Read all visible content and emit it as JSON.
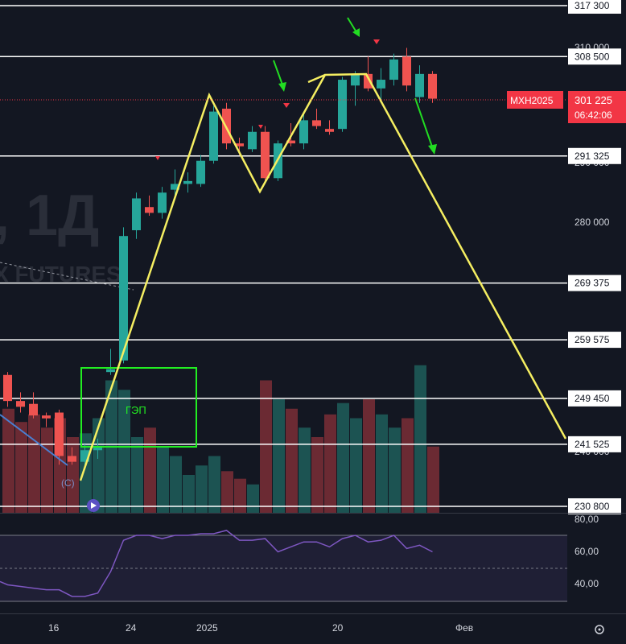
{
  "chart_data": {
    "type": "candlestick",
    "symbol_label": "MXH2025",
    "last_price": "301 225",
    "countdown": "06:42:06",
    "watermark": ", 1Д",
    "watermark_sub": "X FUTURES",
    "gap_label": "ГЭП",
    "wave_label": "(C)",
    "price_axis_ticks": [
      "310 000",
      "290 000",
      "280 000",
      "240 000"
    ],
    "time_axis_ticks": [
      "16",
      "24",
      "2025",
      "20",
      "Фев"
    ],
    "levels": [
      {
        "price": 317300,
        "label": "317 300"
      },
      {
        "price": 308500,
        "label": "308 500"
      },
      {
        "price": 291325,
        "label": "291 325"
      },
      {
        "price": 269375,
        "label": "269 375"
      },
      {
        "price": 259575,
        "label": "259 575"
      },
      {
        "price": 249450,
        "label": "249 450"
      },
      {
        "price": 241525,
        "label": "241 525"
      },
      {
        "price": 230800,
        "label": "230 800"
      }
    ],
    "rsi_ticks": [
      "80,00",
      "60,00",
      "40,00"
    ],
    "candles": [
      {
        "o": 253500,
        "h": 254000,
        "l": 248000,
        "c": 249000
      },
      {
        "o": 249000,
        "h": 250500,
        "l": 247000,
        "c": 248000
      },
      {
        "o": 248500,
        "h": 250500,
        "l": 246000,
        "c": 246500
      },
      {
        "o": 246500,
        "h": 247000,
        "l": 244500,
        "c": 246000
      },
      {
        "o": 247000,
        "h": 247500,
        "l": 238000,
        "c": 239500
      },
      {
        "o": 239500,
        "h": 241000,
        "l": 238000,
        "c": 238500
      },
      {
        "o": 238500,
        "h": 241500,
        "l": 237500,
        "c": 240500
      },
      {
        "o": 240500,
        "h": 242500,
        "l": 239000,
        "c": 241000
      },
      {
        "o": 254000,
        "h": 258000,
        "l": 253500,
        "c": 254500
      },
      {
        "o": 256000,
        "h": 279000,
        "l": 255500,
        "c": 277500
      },
      {
        "o": 278500,
        "h": 285000,
        "l": 277000,
        "c": 284000
      },
      {
        "o": 282500,
        "h": 284500,
        "l": 281000,
        "c": 281500
      },
      {
        "o": 281500,
        "h": 286000,
        "l": 280500,
        "c": 285000
      },
      {
        "o": 285500,
        "h": 289000,
        "l": 284500,
        "c": 286500
      },
      {
        "o": 286500,
        "h": 288500,
        "l": 285000,
        "c": 287000
      },
      {
        "o": 286500,
        "h": 291500,
        "l": 286000,
        "c": 290500
      },
      {
        "o": 290500,
        "h": 300000,
        "l": 290000,
        "c": 299000
      },
      {
        "o": 299500,
        "h": 300500,
        "l": 292500,
        "c": 293500
      },
      {
        "o": 293500,
        "h": 294500,
        "l": 291500,
        "c": 293000
      },
      {
        "o": 292500,
        "h": 296500,
        "l": 292000,
        "c": 295500
      },
      {
        "o": 295500,
        "h": 296500,
        "l": 286500,
        "c": 287500
      },
      {
        "o": 287500,
        "h": 294000,
        "l": 287000,
        "c": 293500
      },
      {
        "o": 294000,
        "h": 297000,
        "l": 293000,
        "c": 293500
      },
      {
        "o": 293500,
        "h": 298500,
        "l": 292500,
        "c": 297500
      },
      {
        "o": 297500,
        "h": 299500,
        "l": 296000,
        "c": 296500
      },
      {
        "o": 296000,
        "h": 297500,
        "l": 295000,
        "c": 295500
      },
      {
        "o": 296000,
        "h": 305000,
        "l": 295500,
        "c": 304500
      },
      {
        "o": 303500,
        "h": 306000,
        "l": 300000,
        "c": 305500
      },
      {
        "o": 305500,
        "h": 308500,
        "l": 302500,
        "c": 303000
      },
      {
        "o": 303000,
        "h": 306500,
        "l": 300500,
        "c": 304500
      },
      {
        "o": 304500,
        "h": 309000,
        "l": 303500,
        "c": 308000
      },
      {
        "o": 308500,
        "h": 310000,
        "l": 302500,
        "c": 303500
      },
      {
        "o": 301500,
        "h": 307000,
        "l": 300500,
        "c": 305500
      },
      {
        "o": 305500,
        "h": 306000,
        "l": 300500,
        "c": 301225
      }
    ],
    "volume": [
      55,
      48,
      52,
      45,
      50,
      40,
      42,
      50,
      70,
      65,
      40,
      45,
      35,
      30,
      20,
      25,
      30,
      22,
      18,
      15,
      70,
      60,
      55,
      45,
      40,
      52,
      58,
      50,
      60,
      52,
      45,
      50,
      78,
      35
    ],
    "rsi": [
      40,
      39,
      38,
      37,
      37,
      33,
      33,
      35,
      48,
      67,
      70,
      70,
      68,
      70,
      70,
      71,
      71,
      73,
      67,
      67,
      68,
      60,
      63,
      66,
      66,
      63,
      68,
      70,
      66,
      67,
      70,
      62,
      64,
      60
    ]
  }
}
